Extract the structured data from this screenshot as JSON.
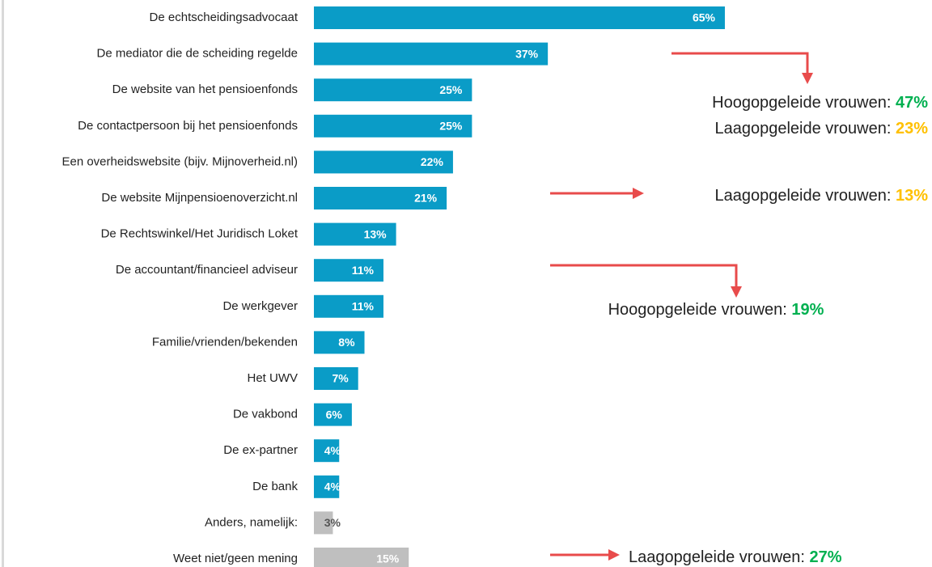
{
  "chart_data": {
    "type": "bar",
    "orientation": "horizontal",
    "categories": [
      "De echtscheidingsadvocaat",
      "De mediator die de scheiding regelde",
      "De website van het pensioenfonds",
      "De contactpersoon bij het pensioenfonds",
      "Een overheidswebsite (bijv. Mijnoverheid.nl)",
      "De website Mijnpensioenoverzicht.nl",
      "De Rechtswinkel/Het Juridisch Loket",
      "De accountant/financieel adviseur",
      "De werkgever",
      "Familie/vrienden/bekenden",
      "Het UWV",
      "De vakbond",
      "De ex-partner",
      "De bank",
      "Anders, namelijk:",
      "Weet niet/geen mening"
    ],
    "values": [
      65,
      37,
      25,
      25,
      22,
      21,
      13,
      11,
      11,
      8,
      7,
      6,
      4,
      4,
      3,
      15
    ],
    "value_labels": [
      "65%",
      "37%",
      "25%",
      "25%",
      "22%",
      "21%",
      "13%",
      "11%",
      "11%",
      "8%",
      "7%",
      "6%",
      "4%",
      "4%",
      "3%",
      "15%"
    ],
    "colors": [
      "#0a9cc7",
      "#0a9cc7",
      "#0a9cc7",
      "#0a9cc7",
      "#0a9cc7",
      "#0a9cc7",
      "#0a9cc7",
      "#0a9cc7",
      "#0a9cc7",
      "#0a9cc7",
      "#0a9cc7",
      "#0a9cc7",
      "#0a9cc7",
      "#0a9cc7",
      "#bfbfbf",
      "#bfbfbf"
    ],
    "annotations": [
      {
        "text": "Hoogopgeleide vrouwen:",
        "value": 47,
        "value_label": "47%",
        "color": "#00b050"
      },
      {
        "text": "Laagopgeleide vrouwen:",
        "value": 23,
        "value_label": "23%",
        "color": "#ffc000"
      },
      {
        "text": "Laagopgeleide vrouwen:",
        "value": 13,
        "value_label": "13%",
        "color": "#ffc000"
      },
      {
        "text": "Hoogopgeleide vrouwen:",
        "value": 19,
        "value_label": "19%",
        "color": "#00b050"
      },
      {
        "text": "Laagopgeleide vrouwen:",
        "value": 27,
        "value_label": "27%",
        "color": "#00b050"
      }
    ]
  }
}
